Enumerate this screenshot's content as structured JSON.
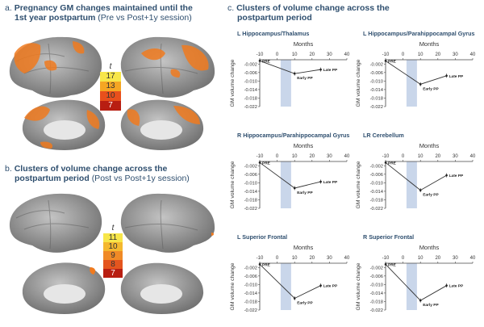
{
  "panel_a": {
    "letter": "a.",
    "title_bold_1": "Pregnancy GM changes maintained until the",
    "title_bold_2": "1st year postpartum",
    "title_sub": "(Pre vs Post+1y session)",
    "colorbar": {
      "label": "t",
      "ticks": [
        "17",
        "13",
        "10",
        "7"
      ],
      "colors": [
        "#f7e64a",
        "#f5a623",
        "#e8501c",
        "#b81e12"
      ]
    }
  },
  "panel_b": {
    "letter": "b.",
    "title_bold_1": "Clusters of volume change across the",
    "title_bold_2": "postpartum period",
    "title_sub": "(Post vs Post+1y session)",
    "colorbar": {
      "label": "t",
      "ticks": [
        "11",
        "10",
        "9",
        "8",
        "7"
      ],
      "colors": [
        "#f7e64a",
        "#f4b82f",
        "#f08a26",
        "#e4551f",
        "#b81e12"
      ]
    }
  },
  "panel_c": {
    "letter": "c.",
    "title_bold_1": "Clusters of volume change across the",
    "title_bold_2": "postpartum period"
  },
  "colors": {
    "title": "#2f4f6f",
    "brain": "#9a9a9a",
    "activation": "#f07a1e",
    "shade": "#c9d6ea"
  },
  "chart_data": [
    {
      "type": "line",
      "title": "L Hippocampus/Thalamus",
      "xlabel": "Months",
      "ylabel": "GM volume change",
      "xlim": [
        -10,
        40
      ],
      "xticks": [
        -10,
        0,
        10,
        20,
        30,
        40
      ],
      "ylim": [
        -0.022,
        0
      ],
      "yticks": [
        -0.002,
        -0.006,
        -0.01,
        -0.014,
        -0.018,
        -0.022
      ],
      "shade": [
        2,
        8
      ],
      "points": [
        {
          "x": -10,
          "y": -0.0005,
          "label": "PRE"
        },
        {
          "x": 10,
          "y": -0.0065,
          "label": "Early PP"
        },
        {
          "x": 25,
          "y": -0.0046,
          "label": "Late PP"
        }
      ]
    },
    {
      "type": "line",
      "title": "L Hippocampus/Parahippocampal Gyrus",
      "xlabel": "Months",
      "ylabel": "GM volume change",
      "xlim": [
        -10,
        40
      ],
      "xticks": [
        -10,
        0,
        10,
        20,
        30,
        40
      ],
      "ylim": [
        -0.022,
        0
      ],
      "yticks": [
        -0.002,
        -0.006,
        -0.01,
        -0.014,
        -0.018,
        -0.022
      ],
      "shade": [
        2,
        8
      ],
      "points": [
        {
          "x": -10,
          "y": -0.0005,
          "label": "PRE"
        },
        {
          "x": 10,
          "y": -0.0115,
          "label": "Early PP"
        },
        {
          "x": 25,
          "y": -0.0075,
          "label": "Late PP"
        }
      ]
    },
    {
      "type": "line",
      "title": "R Hippocampus/Parahippocampal Gyrus",
      "xlabel": "Months",
      "ylabel": "GM volume change",
      "xlim": [
        -10,
        40
      ],
      "xticks": [
        -10,
        0,
        10,
        20,
        30,
        40
      ],
      "ylim": [
        -0.022,
        0
      ],
      "yticks": [
        -0.002,
        -0.006,
        -0.01,
        -0.014,
        -0.018,
        -0.022
      ],
      "shade": [
        2,
        8
      ],
      "points": [
        {
          "x": -10,
          "y": -0.0005,
          "label": "PRE"
        },
        {
          "x": 10,
          "y": -0.0125,
          "label": "Early PP"
        },
        {
          "x": 25,
          "y": -0.0095,
          "label": "Late PP"
        }
      ]
    },
    {
      "type": "line",
      "title": "LR Cerebellum",
      "xlabel": "Months",
      "ylabel": "GM volume change",
      "xlim": [
        -10,
        40
      ],
      "xticks": [
        -10,
        0,
        10,
        20,
        30,
        40
      ],
      "ylim": [
        -0.022,
        0
      ],
      "yticks": [
        -0.002,
        -0.006,
        -0.01,
        -0.014,
        -0.018,
        -0.022
      ],
      "shade": [
        2,
        8
      ],
      "points": [
        {
          "x": -10,
          "y": -0.0005,
          "label": "PRE"
        },
        {
          "x": 10,
          "y": -0.0135,
          "label": "Early PP"
        },
        {
          "x": 25,
          "y": -0.0065,
          "label": "Late PP"
        }
      ]
    },
    {
      "type": "line",
      "title": "L Superior Frontal",
      "xlabel": "Months",
      "ylabel": "GM volume change",
      "xlim": [
        -10,
        40
      ],
      "xticks": [
        -10,
        0,
        10,
        20,
        30,
        40
      ],
      "ylim": [
        -0.022,
        0
      ],
      "yticks": [
        -0.002,
        -0.006,
        -0.01,
        -0.014,
        -0.018,
        -0.022
      ],
      "shade": [
        2,
        8
      ],
      "points": [
        {
          "x": -10,
          "y": -0.0005,
          "label": "PRE"
        },
        {
          "x": 10,
          "y": -0.0165,
          "label": "Early PP"
        },
        {
          "x": 25,
          "y": -0.0105,
          "label": "Late PP"
        }
      ]
    },
    {
      "type": "line",
      "title": "R Superior Frontal",
      "xlabel": "Months",
      "ylabel": "GM volume change",
      "xlim": [
        -10,
        40
      ],
      "xticks": [
        -10,
        0,
        10,
        20,
        30,
        40
      ],
      "ylim": [
        -0.022,
        0
      ],
      "yticks": [
        -0.002,
        -0.006,
        -0.01,
        -0.014,
        -0.018,
        -0.022
      ],
      "shade": [
        2,
        8
      ],
      "points": [
        {
          "x": -10,
          "y": -0.0005,
          "label": "PRE"
        },
        {
          "x": 10,
          "y": -0.0175,
          "label": "Early PP"
        },
        {
          "x": 25,
          "y": -0.0105,
          "label": "Late PP"
        }
      ]
    }
  ]
}
